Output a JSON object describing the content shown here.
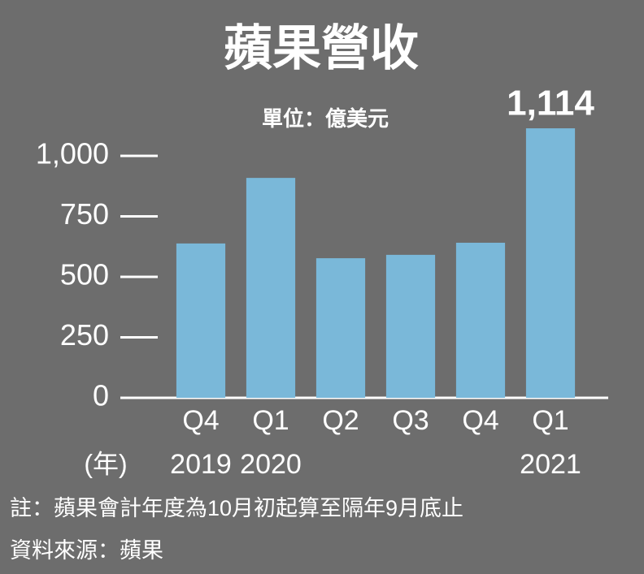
{
  "chart_data": {
    "type": "bar",
    "title": "蘋果營收",
    "subtitle": "單位：億美元",
    "categories": [
      "Q4",
      "Q1",
      "Q2",
      "Q3",
      "Q4",
      "Q1"
    ],
    "year_unit": "(年)",
    "year_labels": [
      "2019",
      "2020",
      null,
      null,
      null,
      "2021"
    ],
    "values": [
      638,
      909,
      577,
      591,
      641,
      1114
    ],
    "value_labels": [
      null,
      null,
      null,
      null,
      null,
      "1,114"
    ],
    "color": "#7ab8d9",
    "ylim": [
      0,
      1100
    ],
    "yticks": [
      0,
      250,
      500,
      750,
      {
        "value": 1000,
        "label": "1,000"
      }
    ],
    "notes": [
      "註：蘋果會計年度為10月初起算至隔年9月底止",
      "資料來源：蘋果"
    ]
  }
}
